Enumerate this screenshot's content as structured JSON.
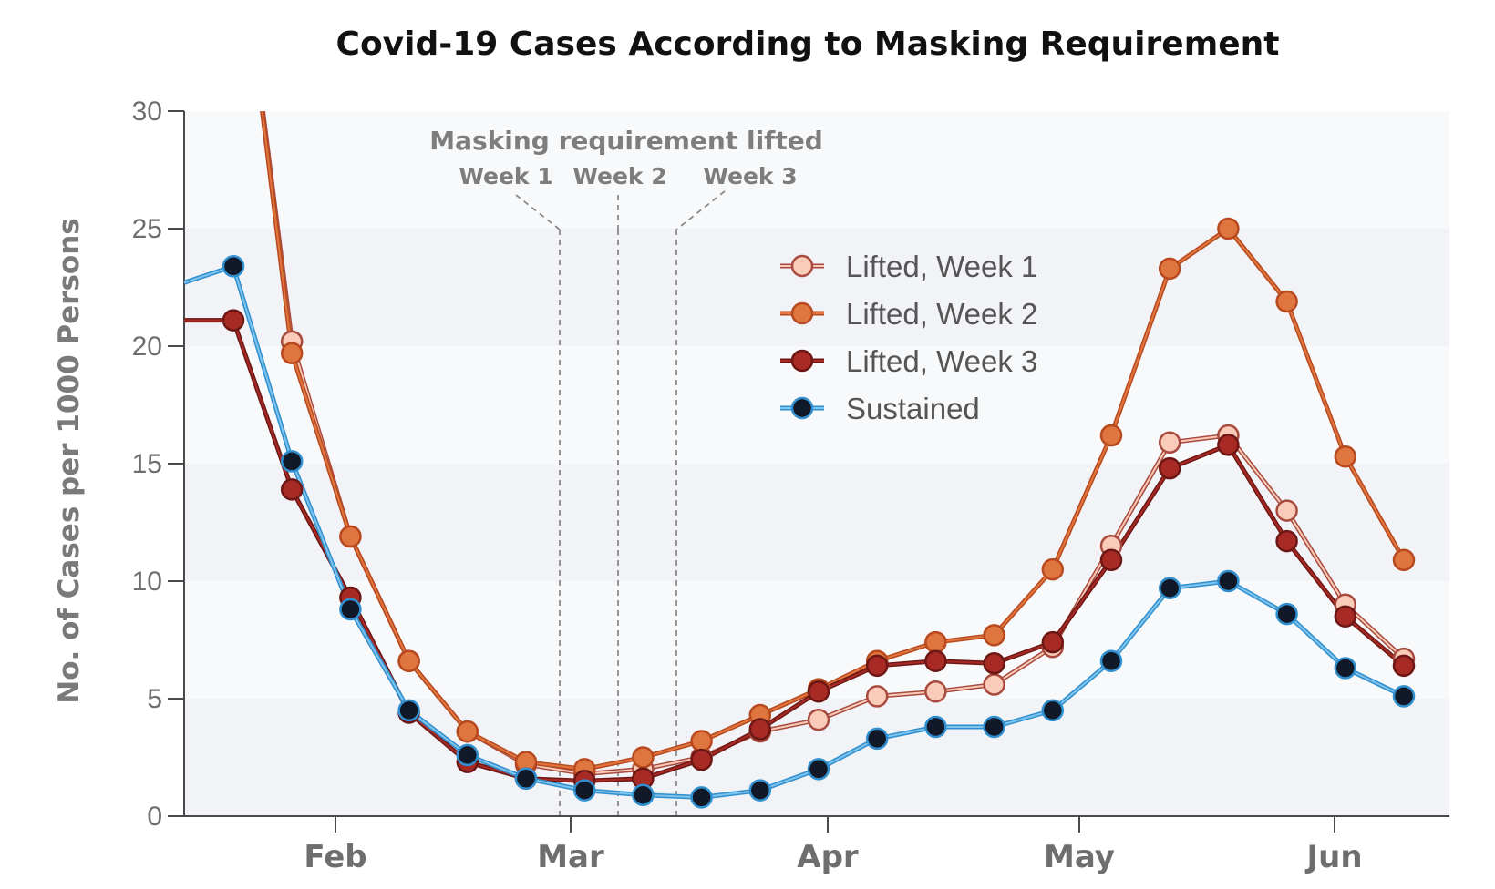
{
  "chart_data": {
    "type": "line",
    "title": "Covid-19 Cases According to Masking Requirement",
    "xlabel": "",
    "ylabel": "No. of Cases per 1000 Persons",
    "ylim": [
      0,
      30
    ],
    "yticks": [
      "0",
      "5",
      "10",
      "15",
      "20",
      "25",
      "30"
    ],
    "xticks": [
      "Feb",
      "Mar",
      "Apr",
      "May",
      "Jun"
    ],
    "annotation": {
      "heading": "Masking requirement lifted",
      "labels": [
        "Week 1",
        "Week 2",
        "Week 3"
      ]
    },
    "x": [
      "Jan 22",
      "Jan 29",
      "Feb 5",
      "Feb 12",
      "Feb 19",
      "Feb 26",
      "Mar 5",
      "Mar 12",
      "Mar 19",
      "Mar 26",
      "Apr 2",
      "Apr 9",
      "Apr 16",
      "Apr 23",
      "Apr 30",
      "May 7",
      "May 14",
      "May 21",
      "May 28",
      "Jun 4",
      "Jun 11"
    ],
    "series": [
      {
        "name": "Lifted, Week 1",
        "color": "#f9cbb8",
        "line_color": "#a84a3e",
        "values": [
          40.0,
          20.2,
          11.9,
          6.6,
          3.6,
          2.2,
          1.8,
          2.0,
          2.5,
          3.6,
          4.1,
          5.1,
          5.3,
          5.6,
          7.2,
          11.5,
          15.9,
          16.2,
          13.0,
          9.0,
          6.7
        ]
      },
      {
        "name": "Lifted, Week 2",
        "color": "#e0763f",
        "line_color": "#b8491e",
        "values": [
          40.0,
          19.7,
          11.9,
          6.6,
          3.6,
          2.3,
          2.0,
          2.5,
          3.2,
          4.3,
          5.4,
          6.6,
          7.4,
          7.7,
          10.5,
          16.2,
          23.3,
          25.0,
          21.9,
          15.3,
          10.9
        ]
      },
      {
        "name": "Lifted, Week 3",
        "color": "#a82a25",
        "line_color": "#6d1714",
        "values": [
          21.1,
          13.9,
          9.3,
          4.4,
          2.3,
          1.6,
          1.5,
          1.6,
          2.4,
          3.7,
          5.3,
          6.4,
          6.6,
          6.5,
          7.4,
          10.9,
          14.8,
          15.8,
          11.7,
          8.5,
          6.4
        ]
      },
      {
        "name": "Sustained",
        "color": "#111827",
        "line_color": "#2f8fcf",
        "values": [
          23.4,
          15.1,
          8.8,
          4.5,
          2.6,
          1.6,
          1.1,
          0.9,
          0.8,
          1.1,
          2.0,
          3.3,
          3.8,
          3.8,
          4.5,
          6.6,
          9.7,
          10.0,
          8.6,
          6.3,
          5.1
        ]
      }
    ],
    "background_bands": [
      "#f1f3f6",
      "#f8f9fa"
    ],
    "legend_position": "upper-right"
  }
}
